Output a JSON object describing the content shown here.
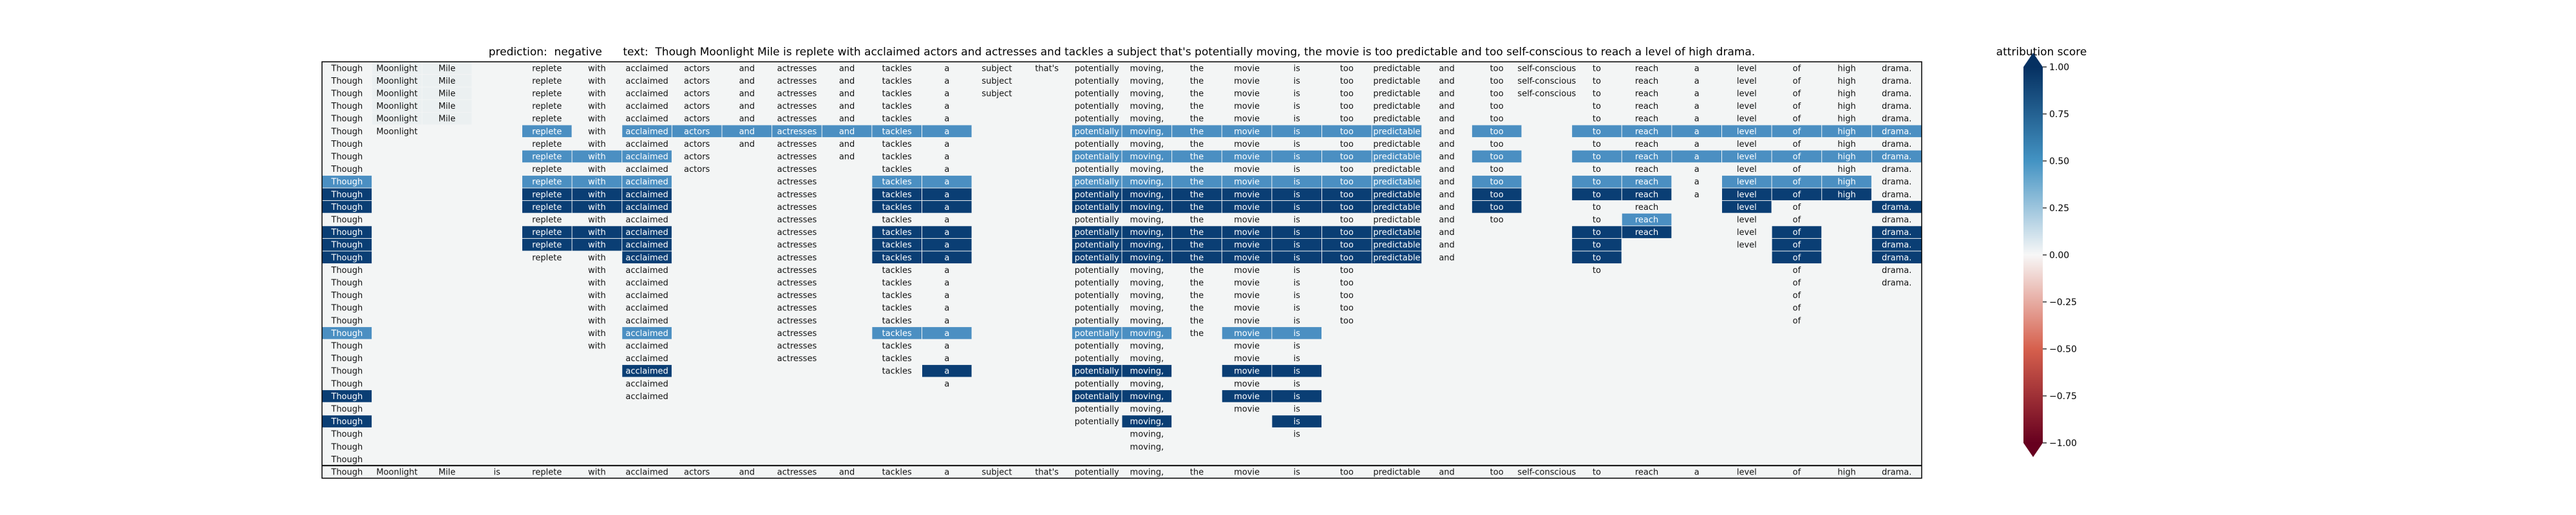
{
  "chart_data": {
    "type": "heatmap",
    "title": "prediction:  negative      text:  Though Moonlight Mile is replete with acclaimed actors and actresses and tackles a subject that's potentially moving, the movie is too predictable and too self-conscious to reach a level of high drama.",
    "prediction": "negative",
    "tokens": [
      "Though",
      "Moonlight",
      "Mile",
      "is",
      "replete",
      "with",
      "acclaimed",
      "actors",
      "and",
      "actresses",
      "and",
      "tackles",
      "a",
      "subject",
      "that's",
      "potentially",
      "moving,",
      "the",
      "movie",
      "is",
      "too",
      "predictable",
      "and",
      "too",
      "self-conscious",
      "to",
      "reach",
      "a",
      "level",
      "of",
      "high",
      "drama."
    ],
    "row_masks": [
      "11101111111111111111111111111111",
      "11101111111111011111111111111111",
      "11101111111111011111111111111111",
      "11101111111110011111111101111111",
      "11101111111110011111111101111111",
      "11001111111110011111111101111111",
      "10001111111110011111111101111111",
      "10001111011110011111111101111111",
      "10001111010110011111111101111111",
      "10001110010110011111111101111111",
      "10001110010110011111111101111111",
      "10001110010110011111111101101101",
      "10001110010110011111111101101101",
      "10001110010110011111111001101101",
      "10001110010110011111111001001101",
      "10001110010110011111111001000101",
      "10000110010110011111100001000101",
      "10000110010110011111100000000101",
      "10000110010110011111100000000100",
      "10000110010110011111100000000100",
      "10000110010110011111100000000100",
      "10000110010110011111000000000000",
      "10000110010110011011000000000000",
      "10000010010110011011000000000000",
      "10000010000110011011000000000000",
      "10000010000010011011000000000000",
      "10000010000000011011000000000000",
      "10000000000000011011000000000000",
      "10000000000000011001000000000000",
      "10000000000000001001000000000000",
      "10000000000000001000000000000000",
      "10000000000000000000000000000000"
    ],
    "final_row": [
      "Though",
      "Moonlight",
      "Mile",
      "is",
      "replete",
      "with",
      "acclaimed",
      "actors",
      "and",
      "actresses",
      "and",
      "tackles",
      "a",
      "subject",
      "that's",
      "potentially",
      "moving,",
      "the",
      "movie",
      "is",
      "too",
      "predictable",
      "and",
      "too",
      "self-conscious",
      "to",
      "reach",
      "a",
      "level",
      "of",
      "high",
      "drama."
    ],
    "highlights": [
      {
        "row": 5,
        "cols": [
          2,
          4,
          6,
          7,
          8,
          9,
          10,
          11,
          12,
          15,
          16,
          17,
          18,
          19,
          20,
          21,
          23,
          24,
          25,
          26,
          27,
          28,
          29,
          30,
          31
        ],
        "value": 0.55
      },
      {
        "row": 7,
        "cols": [
          4,
          5,
          6,
          15,
          16,
          17,
          18,
          19,
          20,
          21,
          23,
          24,
          25,
          26,
          27,
          28,
          29,
          30,
          31
        ],
        "value": 0.55
      },
      {
        "row": 9,
        "cols": [
          0,
          4,
          5,
          6,
          8,
          10,
          11,
          12,
          15,
          16,
          17,
          18,
          19,
          20,
          21,
          23,
          24,
          25,
          26,
          28,
          29,
          30
        ],
        "value": 0.55
      },
      {
        "row": 10,
        "cols": [
          0,
          4,
          5,
          6,
          10,
          11,
          12,
          15,
          16,
          17,
          18,
          19,
          20,
          21,
          23,
          24,
          25,
          26,
          28,
          29,
          30
        ],
        "value": 1.0
      },
      {
        "row": 11,
        "cols": [
          0,
          4,
          5,
          6,
          10,
          11,
          12,
          15,
          16,
          17,
          18,
          19,
          20,
          21,
          23,
          24,
          28,
          31
        ],
        "value": 1.0
      },
      {
        "row": 12,
        "cols": [
          26
        ],
        "value": 0.55
      },
      {
        "row": 13,
        "cols": [
          0,
          4,
          5,
          6,
          10,
          11,
          12,
          15,
          16,
          17,
          18,
          19,
          20,
          21,
          23,
          25,
          26,
          29,
          31
        ],
        "value": 1.0
      },
      {
        "row": 14,
        "cols": [
          0,
          4,
          5,
          6,
          10,
          11,
          12,
          15,
          16,
          17,
          18,
          19,
          20,
          21,
          23,
          25,
          29,
          31
        ],
        "value": 1.0
      },
      {
        "row": 15,
        "cols": [
          0,
          6,
          10,
          11,
          12,
          15,
          16,
          17,
          18,
          19,
          20,
          21,
          23,
          25,
          29,
          31
        ],
        "value": 1.0
      },
      {
        "row": 21,
        "cols": [
          0,
          6,
          10,
          11,
          12,
          15,
          16,
          18,
          19,
          21
        ],
        "value": 0.55
      },
      {
        "row": 24,
        "cols": [
          6,
          12,
          15,
          16,
          18,
          19
        ],
        "value": 1.0
      },
      {
        "row": 26,
        "cols": [
          0,
          15,
          16,
          18,
          19
        ],
        "value": 1.0
      },
      {
        "row": 28,
        "cols": [
          0,
          16,
          19
        ],
        "value": 1.0
      }
    ],
    "colorbar": {
      "label": "attribution score",
      "range": [
        -1.0,
        1.0
      ],
      "ticks": [
        "1.00",
        "0.75",
        "0.50",
        "0.25",
        "0.00",
        "−0.25",
        "−0.50",
        "−0.75",
        "−1.00"
      ],
      "colormap": "RdBu",
      "colors": {
        "neg_strong": "#67001f",
        "neg_mid": "#d6604d",
        "neutral": "#f7f7f7",
        "pos_mid": "#4393c3",
        "pos_strong": "#053061"
      }
    },
    "colors": {
      "background_cell": "#f3f5f5",
      "light_cell": "#ebf0f1",
      "mid_cell": "#4b8fc2",
      "strong_cell": "#0a3e74",
      "frame": "#000000"
    }
  }
}
